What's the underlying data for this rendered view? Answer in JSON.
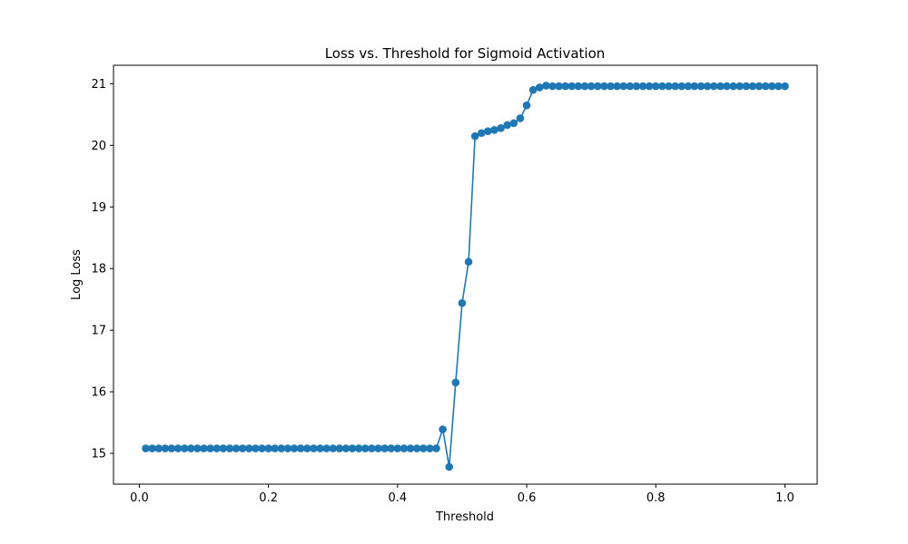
{
  "chart_data": {
    "type": "line",
    "title": "Loss vs. Threshold for Sigmoid Activation",
    "xlabel": "Threshold",
    "ylabel": "Log Loss",
    "xlim": [
      -0.04,
      1.05
    ],
    "ylim": [
      14.5,
      21.3
    ],
    "xticks": [
      0.0,
      0.2,
      0.4,
      0.6,
      0.8,
      1.0
    ],
    "xtick_labels": [
      "0.0",
      "0.2",
      "0.4",
      "0.6",
      "0.8",
      "1.0"
    ],
    "yticks": [
      15,
      16,
      17,
      18,
      19,
      20,
      21
    ],
    "ytick_labels": [
      "15",
      "16",
      "17",
      "18",
      "19",
      "20",
      "21"
    ],
    "grid": false,
    "legend": null,
    "marker": "circle",
    "color": "#1f77b4",
    "series": [
      {
        "x": [
          0.01,
          0.02,
          0.03,
          0.04,
          0.05,
          0.06,
          0.07,
          0.08,
          0.09,
          0.1,
          0.11,
          0.12,
          0.13,
          0.14,
          0.15,
          0.16,
          0.17,
          0.18,
          0.19,
          0.2,
          0.21,
          0.22,
          0.23,
          0.24,
          0.25,
          0.26,
          0.27,
          0.28,
          0.29,
          0.3,
          0.31,
          0.32,
          0.33,
          0.34,
          0.35,
          0.36,
          0.37,
          0.38,
          0.39,
          0.4,
          0.41,
          0.42,
          0.43,
          0.44,
          0.45,
          0.46,
          0.47,
          0.48,
          0.49,
          0.5,
          0.51,
          0.52,
          0.53,
          0.54,
          0.55,
          0.56,
          0.57,
          0.58,
          0.59,
          0.6,
          0.61,
          0.62,
          0.63,
          0.64,
          0.65,
          0.66,
          0.67,
          0.68,
          0.69,
          0.7,
          0.71,
          0.72,
          0.73,
          0.74,
          0.75,
          0.76,
          0.77,
          0.78,
          0.79,
          0.8,
          0.81,
          0.82,
          0.83,
          0.84,
          0.85,
          0.86,
          0.87,
          0.88,
          0.89,
          0.9,
          0.91,
          0.92,
          0.93,
          0.94,
          0.95,
          0.96,
          0.97,
          0.98,
          0.99,
          1.0
        ],
        "y": [
          15.08,
          15.08,
          15.08,
          15.08,
          15.08,
          15.08,
          15.08,
          15.08,
          15.08,
          15.08,
          15.08,
          15.08,
          15.08,
          15.08,
          15.08,
          15.08,
          15.08,
          15.08,
          15.08,
          15.08,
          15.08,
          15.08,
          15.08,
          15.08,
          15.08,
          15.08,
          15.08,
          15.08,
          15.08,
          15.08,
          15.08,
          15.08,
          15.08,
          15.08,
          15.08,
          15.08,
          15.08,
          15.08,
          15.08,
          15.08,
          15.08,
          15.08,
          15.08,
          15.08,
          15.08,
          15.08,
          15.39,
          14.78,
          16.15,
          17.44,
          18.11,
          20.15,
          20.2,
          20.23,
          20.25,
          20.28,
          20.33,
          20.36,
          20.44,
          20.65,
          20.9,
          20.94,
          20.97,
          20.96,
          20.96,
          20.96,
          20.96,
          20.96,
          20.96,
          20.96,
          20.96,
          20.96,
          20.96,
          20.96,
          20.96,
          20.96,
          20.96,
          20.96,
          20.96,
          20.96,
          20.96,
          20.96,
          20.96,
          20.96,
          20.96,
          20.96,
          20.96,
          20.96,
          20.96,
          20.96,
          20.96,
          20.96,
          20.96,
          20.96,
          20.96,
          20.96,
          20.96,
          20.96,
          20.96,
          20.96
        ]
      }
    ]
  }
}
